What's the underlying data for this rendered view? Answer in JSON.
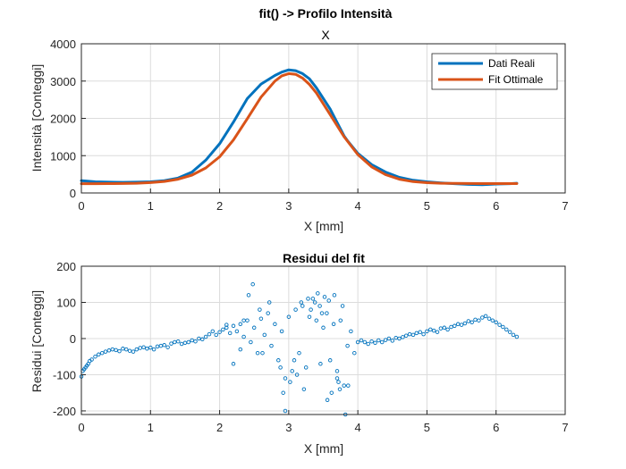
{
  "figure": {
    "suptitle": "fit() -> Profilo Intensità",
    "colors": {
      "data": "#0072BD",
      "fit": "#D95319",
      "grid": "#dcdcdc",
      "axis": "#262626"
    }
  },
  "chart_data": [
    {
      "type": "line",
      "title": "X",
      "xlabel": "X [mm]",
      "ylabel": "Intensità [Conteggi]",
      "xlim": [
        0,
        7
      ],
      "ylim": [
        0,
        4000
      ],
      "xticks": [
        "0",
        "1",
        "2",
        "3",
        "4",
        "5",
        "6",
        "7"
      ],
      "yticks": [
        "0",
        "1000",
        "2000",
        "3000",
        "4000"
      ],
      "grid": true,
      "legend": "top-right",
      "series": [
        {
          "name": "Dati Reali",
          "x": [
            0,
            0.2,
            0.4,
            0.6,
            0.8,
            1.0,
            1.2,
            1.4,
            1.6,
            1.8,
            2.0,
            2.2,
            2.4,
            2.6,
            2.8,
            2.9,
            3.0,
            3.1,
            3.2,
            3.3,
            3.4,
            3.6,
            3.8,
            3.85,
            4.0,
            4.2,
            4.4,
            4.6,
            4.8,
            5.0,
            5.2,
            5.4,
            5.6,
            5.8,
            6.0,
            6.2,
            6.3
          ],
          "y": [
            330,
            300,
            290,
            285,
            290,
            300,
            330,
            400,
            560,
            880,
            1320,
            1900,
            2530,
            2920,
            3150,
            3240,
            3300,
            3280,
            3200,
            3060,
            2820,
            2250,
            1530,
            1400,
            1060,
            760,
            560,
            420,
            340,
            300,
            270,
            250,
            230,
            220,
            240,
            250,
            260
          ]
        },
        {
          "name": "Fit Ottimale",
          "x": [
            0,
            0.2,
            0.4,
            0.6,
            0.8,
            1.0,
            1.2,
            1.4,
            1.6,
            1.8,
            2.0,
            2.2,
            2.4,
            2.6,
            2.8,
            2.9,
            3.0,
            3.1,
            3.2,
            3.3,
            3.4,
            3.6,
            3.8,
            4.0,
            4.2,
            4.4,
            4.6,
            4.8,
            5.0,
            5.2,
            5.4,
            5.6,
            5.8,
            6.0,
            6.2,
            6.3
          ],
          "y": [
            250,
            250,
            252,
            255,
            262,
            278,
            310,
            370,
            480,
            670,
            970,
            1420,
            1990,
            2570,
            3000,
            3140,
            3200,
            3180,
            3080,
            2910,
            2680,
            2100,
            1510,
            1030,
            700,
            490,
            370,
            305,
            275,
            262,
            256,
            253,
            252,
            252,
            252,
            252
          ]
        }
      ]
    },
    {
      "type": "scatter",
      "title": "Residui del fit",
      "xlabel": "X [mm]",
      "ylabel": "Residui [Conteggi]",
      "xlim": [
        0,
        7
      ],
      "ylim": [
        -210,
        200
      ],
      "xticks": [
        "0",
        "1",
        "2",
        "3",
        "4",
        "5",
        "6",
        "7"
      ],
      "yticks": [
        "-200",
        "-100",
        "0",
        "100",
        "200"
      ],
      "grid": true,
      "series": [
        {
          "name": "",
          "x": [
            0.0,
            0.02,
            0.04,
            0.06,
            0.08,
            0.1,
            0.12,
            0.15,
            0.2,
            0.25,
            0.3,
            0.35,
            0.4,
            0.45,
            0.5,
            0.55,
            0.6,
            0.65,
            0.7,
            0.75,
            0.8,
            0.85,
            0.9,
            0.95,
            1.0,
            1.05,
            1.1,
            1.15,
            1.2,
            1.25,
            1.3,
            1.35,
            1.4,
            1.45,
            1.5,
            1.55,
            1.6,
            1.65,
            1.7,
            1.75,
            1.8,
            1.85,
            1.9,
            1.95,
            2.0,
            2.05,
            2.1,
            2.15,
            2.2,
            2.25,
            2.3,
            2.35,
            2.4,
            2.45,
            2.5,
            2.55,
            2.6,
            2.65,
            2.7,
            2.75,
            2.8,
            2.85,
            2.9,
            2.95,
            3.0,
            3.05,
            3.1,
            3.15,
            3.2,
            3.25,
            3.3,
            3.35,
            3.4,
            3.45,
            3.5,
            3.55,
            3.6,
            3.65,
            3.7,
            3.75,
            3.8,
            3.85,
            3.9,
            3.95,
            4.0,
            4.05,
            4.1,
            4.15,
            4.2,
            4.25,
            4.3,
            4.35,
            4.4,
            4.45,
            4.5,
            4.55,
            4.6,
            4.65,
            4.7,
            4.75,
            4.8,
            4.85,
            4.9,
            4.95,
            5.0,
            5.05,
            5.1,
            5.15,
            5.2,
            5.25,
            5.3,
            5.35,
            5.4,
            5.45,
            5.5,
            5.55,
            5.6,
            5.65,
            5.7,
            5.75,
            5.8,
            5.85,
            5.9,
            5.95,
            6.0,
            6.05,
            6.1,
            6.15,
            6.2,
            6.25,
            6.3,
            2.48,
            2.42,
            2.58,
            2.72,
            2.92,
            2.95,
            3.02,
            3.08,
            3.12,
            3.18,
            3.22,
            3.28,
            3.32,
            3.38,
            3.42,
            3.46,
            3.52,
            3.58,
            3.62,
            3.66,
            3.7,
            3.72,
            3.78,
            3.82,
            3.86,
            2.2,
            2.35,
            2.62,
            2.88,
            3.48,
            3.56,
            3.74,
            2.1,
            2.3
          ],
          "y": [
            -105,
            -90,
            -85,
            -80,
            -75,
            -70,
            -62,
            -58,
            -50,
            -44,
            -40,
            -36,
            -33,
            -30,
            -32,
            -35,
            -28,
            -30,
            -34,
            -36,
            -30,
            -26,
            -24,
            -28,
            -25,
            -30,
            -22,
            -20,
            -18,
            -24,
            -14,
            -10,
            -8,
            -15,
            -12,
            -10,
            -5,
            -8,
            0,
            -2,
            5,
            12,
            20,
            10,
            18,
            25,
            30,
            15,
            35,
            20,
            40,
            5,
            50,
            -10,
            30,
            -40,
            55,
            10,
            70,
            -20,
            40,
            -60,
            20,
            -110,
            60,
            -90,
            80,
            -40,
            90,
            -80,
            60,
            110,
            50,
            90,
            30,
            70,
            -60,
            40,
            -110,
            50,
            -130,
            -20,
            20,
            -40,
            -10,
            -5,
            -10,
            -15,
            -8,
            -12,
            -5,
            -10,
            -4,
            0,
            -6,
            2,
            0,
            4,
            8,
            12,
            10,
            15,
            18,
            12,
            20,
            25,
            22,
            18,
            28,
            30,
            25,
            32,
            35,
            40,
            38,
            42,
            48,
            45,
            52,
            50,
            58,
            62,
            55,
            50,
            45,
            38,
            32,
            25,
            18,
            10,
            5,
            150,
            120,
            80,
            100,
            -150,
            -200,
            -120,
            -60,
            -100,
            100,
            -140,
            110,
            80,
            100,
            125,
            -70,
            115,
            105,
            -150,
            120,
            -90,
            -120,
            90,
            -210,
            -130,
            -70,
            50,
            -40,
            -80,
            70,
            -170,
            -140,
            38,
            -30
          ]
        }
      ]
    }
  ]
}
